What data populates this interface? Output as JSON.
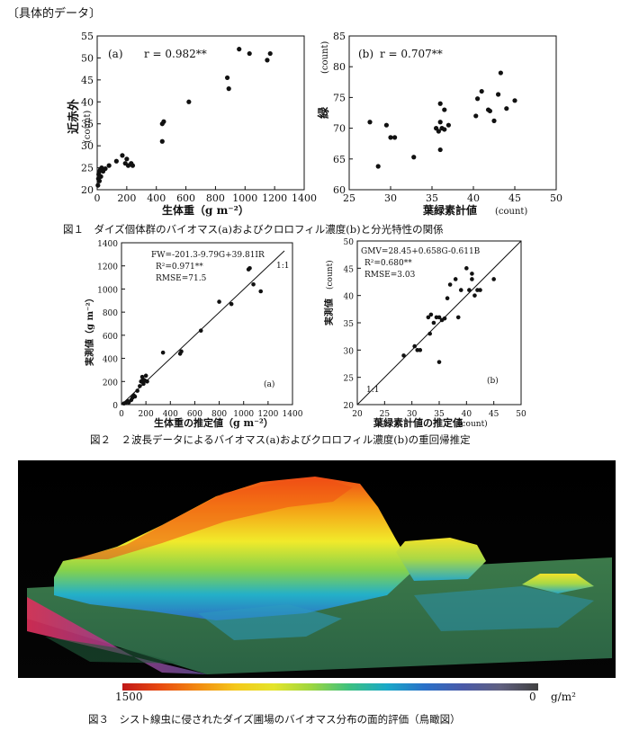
{
  "header": "〔具体的データ〕",
  "fig1": {
    "caption": "図１　ダイズ個体群のバイオマス(a)およびクロロフィル濃度(b)と分光特性の関係",
    "a": {
      "label": "(a)",
      "r_text": "r = 0.982**",
      "xlabel": "生体重（g m⁻²）",
      "ylabel": "近赤外",
      "yunit": "(count)",
      "xticks": [
        "0",
        "200",
        "400",
        "600",
        "800",
        "1000",
        "1200",
        "1400"
      ],
      "yticks": [
        "20",
        "25",
        "30",
        "35",
        "40",
        "45",
        "50",
        "55"
      ]
    },
    "b": {
      "label": "(b)",
      "r_text": "r = 0.707**",
      "xlabel": "葉緑素計値",
      "xunit": "(count)",
      "ylabel": "緑",
      "yunit": "(count)",
      "xticks": [
        "25",
        "30",
        "35",
        "40",
        "45",
        "50"
      ],
      "yticks": [
        "60",
        "65",
        "70",
        "75",
        "80",
        "85"
      ]
    }
  },
  "fig2": {
    "caption": "図２　２波長データによるバイオマス(a)およびクロロフィル濃度(b)の重回帰推定",
    "a": {
      "eq1": "FW=-201.3-9.79G+39.81IR",
      "eq2": "R²=0.971**",
      "eq3": "RMSE=71.5",
      "oneone": "1:1",
      "label": "(a)",
      "xlabel": "生体重の推定値（g m⁻²）",
      "ylabel": "実測値（g m⁻²）",
      "xticks": [
        "0",
        "200",
        "400",
        "600",
        "800",
        "1000",
        "1200",
        "1400"
      ],
      "yticks": [
        "0",
        "200",
        "400",
        "600",
        "800",
        "1000",
        "1200",
        "1400"
      ]
    },
    "b": {
      "eq1": "GMV=28.45+0.658G-0.611B",
      "eq2": "R²=0.680**",
      "eq3": "RMSE=3.03",
      "oneone": "1:1",
      "label": "(b)",
      "xlabel": "葉緑素計値の推定値",
      "xunit": "(count)",
      "ylabel": "実測値",
      "yunit": "(count)",
      "xticks": [
        "20",
        "25",
        "30",
        "35",
        "40",
        "45",
        "50"
      ],
      "yticks": [
        "20",
        "25",
        "30",
        "35",
        "40",
        "45",
        "50"
      ]
    }
  },
  "fig3": {
    "caption": "図３　シスト線虫に侵されたダイズ圃場のバイオマス分布の面的評価（鳥瞰図）",
    "legend_max": "1500",
    "legend_min": "0",
    "legend_unit": "g/m²",
    "image_alt": "3D bird's-eye rendering of soybean field biomass"
  },
  "chart_data": [
    {
      "type": "scatter",
      "id": "fig1a",
      "title": "(a)",
      "annotation": "r = 0.982**",
      "xlabel": "生体重（g m⁻²）",
      "ylabel": "近赤外 (count)",
      "xlim": [
        0,
        1400
      ],
      "ylim": [
        20,
        55
      ],
      "points": [
        [
          5,
          21
        ],
        [
          8,
          22.5
        ],
        [
          10,
          23.5
        ],
        [
          12,
          24
        ],
        [
          15,
          22
        ],
        [
          20,
          24.5
        ],
        [
          25,
          23
        ],
        [
          30,
          25
        ],
        [
          40,
          24.2
        ],
        [
          55,
          24.8
        ],
        [
          80,
          25.5
        ],
        [
          130,
          26.5
        ],
        [
          170,
          27.8
        ],
        [
          190,
          26
        ],
        [
          200,
          27
        ],
        [
          210,
          25.5
        ],
        [
          230,
          26
        ],
        [
          240,
          25.5
        ],
        [
          440,
          31
        ],
        [
          440,
          35
        ],
        [
          450,
          35.5
        ],
        [
          620,
          40
        ],
        [
          880,
          45.5
        ],
        [
          890,
          43
        ],
        [
          960,
          52
        ],
        [
          1030,
          51
        ],
        [
          1150,
          49.5
        ],
        [
          1170,
          51
        ]
      ]
    },
    {
      "type": "scatter",
      "id": "fig1b",
      "title": "(b)",
      "annotation": "r = 0.707**",
      "xlabel": "葉緑素計値 (count)",
      "ylabel": "緑 (count)",
      "xlim": [
        25,
        50
      ],
      "ylim": [
        60,
        85
      ],
      "points": [
        [
          27.5,
          71
        ],
        [
          28.5,
          63.8
        ],
        [
          29.5,
          70.5
        ],
        [
          30,
          68.5
        ],
        [
          30.5,
          68.5
        ],
        [
          32.8,
          65.3
        ],
        [
          35.5,
          70
        ],
        [
          35.8,
          69.5
        ],
        [
          36,
          74
        ],
        [
          36,
          71
        ],
        [
          36,
          66.5
        ],
        [
          36.2,
          70
        ],
        [
          36.5,
          73
        ],
        [
          36.5,
          69.8
        ],
        [
          37,
          70.5
        ],
        [
          40.3,
          72
        ],
        [
          40.5,
          74.8
        ],
        [
          41,
          76
        ],
        [
          41.8,
          73
        ],
        [
          42,
          72.8
        ],
        [
          42.5,
          71.2
        ],
        [
          43,
          75.5
        ],
        [
          43.3,
          79
        ],
        [
          44,
          73.2
        ],
        [
          45,
          74.5
        ]
      ]
    },
    {
      "type": "scatter",
      "id": "fig2a",
      "title": "(a)",
      "annotation": "FW=-201.3-9.79G+39.81IR; R²=0.971**; RMSE=71.5",
      "xlabel": "生体重の推定値（g m⁻²）",
      "ylabel": "実測値（g m⁻²）",
      "xlim": [
        0,
        1400
      ],
      "ylim": [
        0,
        1400
      ],
      "points": [
        [
          20,
          10
        ],
        [
          40,
          20
        ],
        [
          50,
          30
        ],
        [
          60,
          20
        ],
        [
          80,
          40
        ],
        [
          90,
          60
        ],
        [
          100,
          80
        ],
        [
          110,
          70
        ],
        [
          130,
          120
        ],
        [
          150,
          160
        ],
        [
          160,
          200
        ],
        [
          170,
          240
        ],
        [
          175,
          220
        ],
        [
          180,
          180
        ],
        [
          190,
          210
        ],
        [
          200,
          250
        ],
        [
          210,
          200
        ],
        [
          340,
          450
        ],
        [
          480,
          440
        ],
        [
          490,
          460
        ],
        [
          650,
          640
        ],
        [
          800,
          890
        ],
        [
          900,
          870
        ],
        [
          1040,
          1170
        ],
        [
          1050,
          1180
        ],
        [
          1080,
          1040
        ],
        [
          1140,
          980
        ]
      ]
    },
    {
      "type": "scatter",
      "id": "fig2b",
      "title": "(b)",
      "annotation": "GMV=28.45+0.658G-0.611B; R²=0.680**; RMSE=3.03",
      "xlabel": "葉緑素計値の推定値 (count)",
      "ylabel": "実測値 (count)",
      "xlim": [
        20,
        50
      ],
      "ylim": [
        20,
        50
      ],
      "points": [
        [
          28.5,
          29
        ],
        [
          30.5,
          30.7
        ],
        [
          31,
          30
        ],
        [
          31.5,
          30
        ],
        [
          33,
          36
        ],
        [
          33.5,
          36.5
        ],
        [
          33.3,
          33
        ],
        [
          34,
          35
        ],
        [
          34.5,
          36
        ],
        [
          35,
          27.8
        ],
        [
          35,
          36
        ],
        [
          35.5,
          35.5
        ],
        [
          36,
          35.8
        ],
        [
          36.5,
          39.5
        ],
        [
          37,
          42
        ],
        [
          38,
          43
        ],
        [
          38.5,
          36
        ],
        [
          39,
          41
        ],
        [
          40,
          45
        ],
        [
          40.5,
          41
        ],
        [
          41,
          44
        ],
        [
          41,
          43
        ],
        [
          41.5,
          40
        ],
        [
          42,
          41
        ],
        [
          42.5,
          41
        ],
        [
          45,
          43
        ]
      ]
    }
  ]
}
